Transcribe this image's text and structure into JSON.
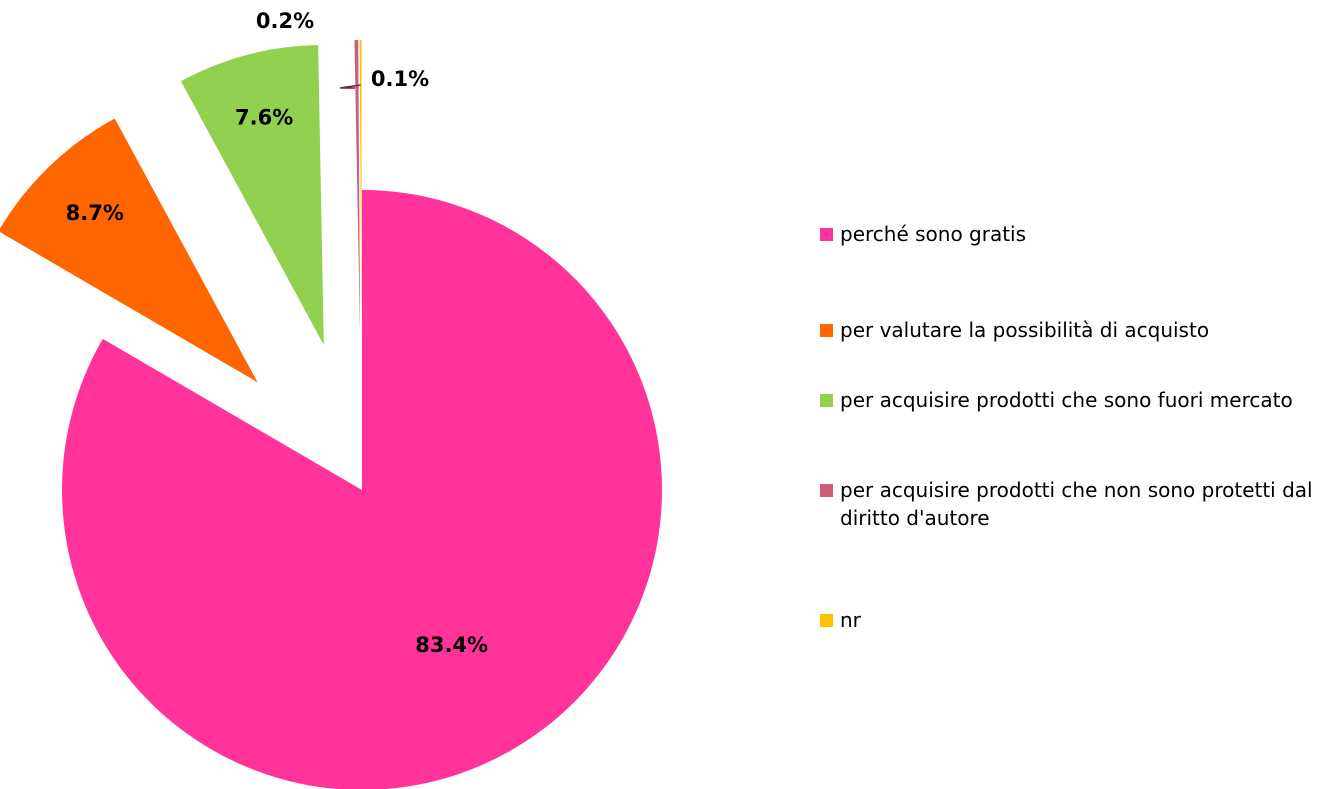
{
  "chart_data": {
    "type": "pie",
    "categories": [
      "perché sono gratis",
      "per valutare la possibilità di acquisto",
      "per acquisire prodotti che sono fuori mercato",
      "per acquisire prodotti che non sono protetti dal diritto d'autore",
      "nr"
    ],
    "values": [
      83.4,
      8.7,
      7.6,
      0.2,
      0.1
    ],
    "value_labels": [
      "83.4%",
      "8.7%",
      "7.6%",
      "0.2%",
      "0.1%"
    ],
    "colors": [
      "#ff3399",
      "#ff6600",
      "#92d050",
      "#cc5f78",
      "#ffc000"
    ],
    "legend": "right"
  }
}
